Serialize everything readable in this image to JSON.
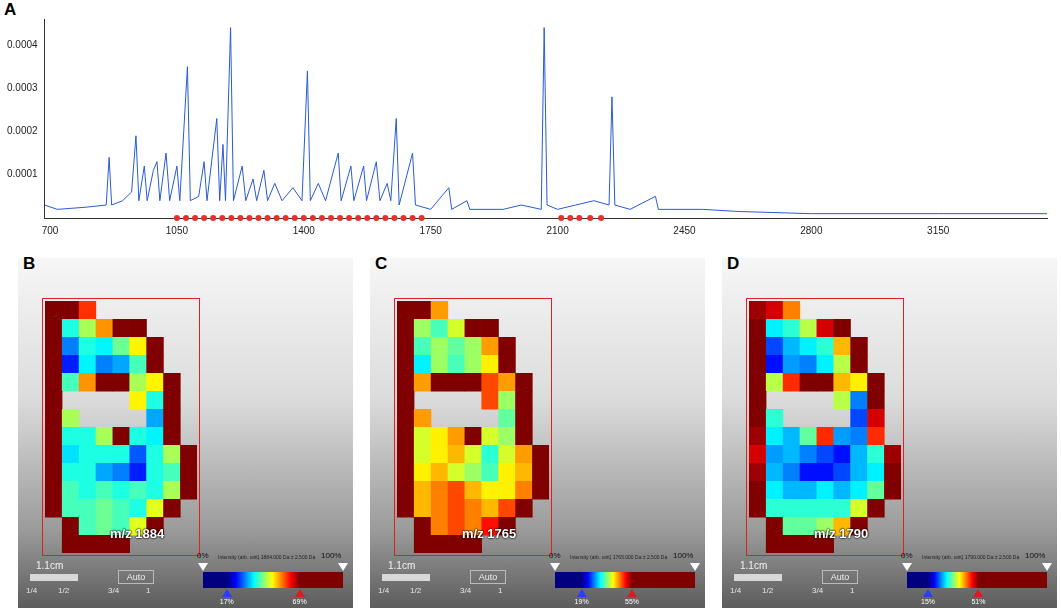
{
  "chart_data": [
    {
      "panel": "A",
      "type": "line",
      "x": [
        685,
        720,
        800,
        855,
        863,
        870,
        900,
        925,
        937,
        945,
        960,
        968,
        985,
        995,
        1003,
        1020,
        1030,
        1050,
        1058,
        1079,
        1087,
        1110,
        1125,
        1133,
        1160,
        1168,
        1177,
        1184,
        1198,
        1206,
        1230,
        1240,
        1260,
        1270,
        1290,
        1300,
        1320,
        1340,
        1370,
        1395,
        1410,
        1418,
        1440,
        1460,
        1495,
        1503,
        1530,
        1538,
        1565,
        1573,
        1600,
        1610,
        1630,
        1640,
        1655,
        1663,
        1700,
        1708,
        1750,
        1800,
        1808,
        1850,
        1858,
        1950,
        2000,
        2055,
        2063,
        2071,
        2100,
        2150,
        2200,
        2242,
        2250,
        2258,
        2300,
        2370,
        2378,
        2500,
        2600,
        2800,
        3150,
        3450
      ],
      "series": [
        {
          "color": "#2a5bd7",
          "line_style": "solid",
          "values": [
            3e-05,
            2e-05,
            2.5e-05,
            3e-05,
            0.00014,
            3e-05,
            4e-05,
            6e-05,
            0.00019,
            4e-05,
            0.00012,
            4e-05,
            0.00011,
            0.00013,
            4e-05,
            0.00015,
            4e-05,
            0.00012,
            4e-05,
            0.00035,
            4e-05,
            5e-05,
            0.00013,
            4e-05,
            0.00023,
            4e-05,
            0.00017,
            4e-05,
            0.00044,
            4e-05,
            0.00012,
            4e-05,
            9e-05,
            4e-05,
            0.00011,
            4e-05,
            8e-05,
            4e-05,
            7e-05,
            4e-05,
            0.00034,
            4e-05,
            8e-05,
            4e-05,
            0.00015,
            4e-05,
            0.00012,
            4e-05,
            0.00012,
            4e-05,
            0.00013,
            4e-05,
            8e-05,
            4e-05,
            0.00023,
            3e-05,
            0.00015,
            3e-05,
            2e-05,
            7e-05,
            2e-05,
            4e-05,
            2e-05,
            2e-05,
            3e-05,
            2e-05,
            0.00044,
            3e-05,
            2e-05,
            3e-05,
            4e-05,
            3e-05,
            0.00028,
            3e-05,
            2e-05,
            5e-05,
            2e-05,
            2e-05,
            1.5e-05,
            1e-05,
            1e-05,
            1e-05
          ]
        },
        {
          "type": "scatter",
          "color": "#e8302a",
          "marker": "circle",
          "x": [
            1050,
            1075,
            1100,
            1125,
            1150,
            1175,
            1200,
            1225,
            1250,
            1275,
            1300,
            1325,
            1350,
            1375,
            1400,
            1425,
            1450,
            1475,
            1500,
            1525,
            1550,
            1575,
            1600,
            1625,
            1650,
            1675,
            1700,
            1725,
            2110,
            2135,
            2160,
            2190,
            2220
          ],
          "values": [
            0,
            0,
            0,
            0,
            0,
            0,
            0,
            0,
            0,
            0,
            0,
            0,
            0,
            0,
            0,
            0,
            0,
            0,
            0,
            0,
            0,
            0,
            0,
            0,
            0,
            0,
            0,
            0,
            0,
            0,
            0,
            0,
            0
          ]
        }
      ],
      "xlim": [
        685,
        3450
      ],
      "ylim": [
        0,
        0.00046
      ],
      "xticks": [
        700,
        1050,
        1400,
        1750,
        2100,
        2450,
        2800,
        3150
      ],
      "yticks": [
        0.0001,
        0.0002,
        0.0003,
        0.0004
      ],
      "grid": false
    },
    {
      "panel": "B",
      "type": "heatmap",
      "label": "m/z 1884",
      "cells": [
        [
          75,
          70,
          60,
          null,
          null,
          null,
          null,
          null,
          null
        ],
        [
          80,
          38,
          45,
          55,
          70,
          72,
          null,
          null,
          null
        ],
        [
          80,
          30,
          38,
          36,
          42,
          50,
          78,
          null,
          null
        ],
        [
          75,
          25,
          36,
          30,
          32,
          40,
          80,
          null,
          null
        ],
        [
          72,
          40,
          55,
          70,
          78,
          45,
          50,
          80,
          null
        ],
        [
          75,
          null,
          null,
          null,
          null,
          50,
          38,
          80,
          null
        ],
        [
          80,
          45,
          null,
          null,
          null,
          null,
          32,
          75,
          null
        ],
        [
          80,
          38,
          38,
          45,
          70,
          38,
          36,
          80,
          null
        ],
        [
          75,
          35,
          38,
          38,
          38,
          28,
          38,
          45,
          80
        ],
        [
          80,
          38,
          38,
          32,
          30,
          25,
          38,
          40,
          82
        ],
        [
          80,
          40,
          38,
          40,
          38,
          40,
          38,
          45,
          80
        ],
        [
          82,
          40,
          40,
          42,
          40,
          38,
          48,
          80,
          null
        ],
        [
          null,
          82,
          40,
          42,
          40,
          48,
          80,
          null,
          null
        ],
        [
          null,
          85,
          85,
          82,
          80,
          null,
          null,
          null,
          null
        ]
      ],
      "color_bar": {
        "range": [
          0,
          100
        ],
        "ticks": [
          {
            "value": 0,
            "label": "0%"
          },
          {
            "value": 100,
            "label": "100%"
          }
        ],
        "window": [
          {
            "value": 17,
            "label": "17%"
          },
          {
            "value": 69,
            "label": "69%"
          }
        ],
        "title": "Intensity (arb. unit) 1884.000 Da ± 2.500 Da"
      },
      "scale_bar": "1.1cm",
      "button": "Auto",
      "zoom_labels": [
        "1/4",
        "1/2",
        "3/4",
        "1"
      ]
    },
    {
      "panel": "C",
      "type": "heatmap",
      "label": "m/z 1765",
      "cells": [
        [
          60,
          55,
          45,
          null,
          null,
          null,
          null,
          null,
          null
        ],
        [
          70,
          38,
          35,
          40,
          55,
          60,
          null,
          null,
          null
        ],
        [
          75,
          35,
          38,
          36,
          38,
          45,
          70,
          null,
          null
        ],
        [
          70,
          32,
          38,
          35,
          38,
          42,
          72,
          null,
          null
        ],
        [
          65,
          45,
          55,
          62,
          70,
          48,
          45,
          70,
          null
        ],
        [
          70,
          null,
          null,
          null,
          null,
          48,
          38,
          65,
          null
        ],
        [
          72,
          45,
          null,
          null,
          null,
          null,
          36,
          62,
          null
        ],
        [
          70,
          40,
          42,
          45,
          60,
          40,
          38,
          65,
          null
        ],
        [
          65,
          40,
          42,
          44,
          40,
          34,
          40,
          45,
          62
        ],
        [
          68,
          42,
          44,
          40,
          38,
          35,
          42,
          44,
          65
        ],
        [
          70,
          44,
          46,
          48,
          44,
          42,
          42,
          46,
          66
        ],
        [
          72,
          44,
          46,
          48,
          46,
          44,
          48,
          65,
          null
        ],
        [
          null,
          70,
          46,
          48,
          46,
          50,
          68,
          null,
          null
        ],
        [
          null,
          72,
          70,
          70,
          68,
          null,
          null,
          null,
          null
        ]
      ],
      "color_bar": {
        "range": [
          0,
          100
        ],
        "ticks": [
          {
            "value": 0,
            "label": "0%"
          },
          {
            "value": 100,
            "label": "100%"
          }
        ],
        "window": [
          {
            "value": 19,
            "label": "19%"
          },
          {
            "value": 55,
            "label": "55%"
          }
        ],
        "title": "Intensity (arb. unit) 1765.000 Da ± 2.500 Da"
      },
      "scale_bar": "1.1cm",
      "button": "Auto",
      "zoom_labels": [
        "1/4",
        "1/2",
        "3/4",
        "1"
      ]
    },
    {
      "panel": "D",
      "type": "heatmap",
      "label": "m/z 1790",
      "cells": [
        [
          50,
          48,
          42,
          null,
          null,
          null,
          null,
          null,
          null
        ],
        [
          58,
          28,
          30,
          35,
          48,
          55,
          null,
          null,
          null
        ],
        [
          60,
          22,
          26,
          28,
          30,
          40,
          55,
          null,
          null
        ],
        [
          55,
          20,
          25,
          24,
          28,
          35,
          58,
          null,
          null
        ],
        [
          60,
          35,
          45,
          55,
          60,
          40,
          38,
          55,
          null
        ],
        [
          55,
          null,
          null,
          null,
          null,
          35,
          24,
          52,
          null
        ],
        [
          52,
          30,
          null,
          null,
          null,
          null,
          22,
          48,
          null
        ],
        [
          50,
          28,
          26,
          32,
          45,
          25,
          24,
          45,
          null
        ],
        [
          48,
          25,
          26,
          24,
          22,
          20,
          26,
          30,
          50
        ],
        [
          50,
          26,
          24,
          20,
          20,
          22,
          26,
          28,
          52
        ],
        [
          52,
          28,
          26,
          26,
          28,
          26,
          28,
          32,
          55
        ],
        [
          55,
          30,
          30,
          30,
          30,
          30,
          36,
          58,
          null
        ],
        [
          null,
          58,
          32,
          32,
          34,
          40,
          60,
          null,
          null
        ],
        [
          null,
          62,
          60,
          60,
          58,
          null,
          null,
          null,
          null
        ]
      ],
      "color_bar": {
        "range": [
          0,
          100
        ],
        "ticks": [
          {
            "value": 0,
            "label": "0%"
          },
          {
            "value": 100,
            "label": "100%"
          }
        ],
        "window": [
          {
            "value": 15,
            "label": "15%"
          },
          {
            "value": 51,
            "label": "51%"
          }
        ],
        "title": "Intensity (arb. unit) 1790.000 Da ± 2.500 Da"
      },
      "scale_bar": "1.1cm",
      "button": "Auto",
      "zoom_labels": [
        "1/4",
        "1/2",
        "3/4",
        "1"
      ]
    }
  ]
}
